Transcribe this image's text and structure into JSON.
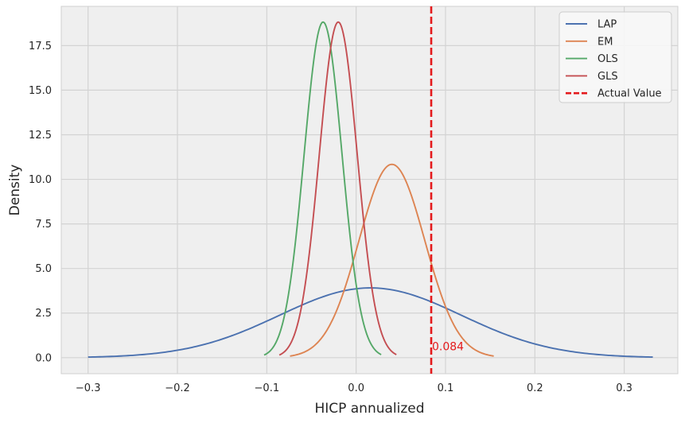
{
  "chart_data": {
    "type": "line",
    "xlabel": "HICP annualized",
    "ylabel": "Density",
    "xlim": [
      -0.33,
      0.36
    ],
    "ylim": [
      -0.9,
      19.7
    ],
    "xticks": [
      -0.3,
      -0.2,
      -0.1,
      0.0,
      0.1,
      0.2,
      0.3
    ],
    "xtick_labels": [
      "−0.3",
      "−0.2",
      "−0.1",
      "0.0",
      "0.1",
      "0.2",
      "0.3"
    ],
    "yticks": [
      0.0,
      2.5,
      5.0,
      7.5,
      10.0,
      12.5,
      15.0,
      17.5
    ],
    "ytick_labels": [
      "0.0",
      "2.5",
      "5.0",
      "7.5",
      "10.0",
      "12.5",
      "15.0",
      "17.5"
    ],
    "grid": true,
    "background": "#efefef",
    "legend_position": "top-right",
    "series": [
      {
        "name": "LAP",
        "color": "#4c72b0",
        "dist": "normal",
        "mean": 0.016,
        "std": 0.102,
        "x_range": [
          -0.3,
          0.332
        ]
      },
      {
        "name": "EM",
        "color": "#dd8452",
        "dist": "normal",
        "mean": 0.04,
        "std": 0.0368,
        "x_range": [
          -0.074,
          0.154
        ]
      },
      {
        "name": "OLS",
        "color": "#55a868",
        "dist": "normal",
        "mean": -0.037,
        "std": 0.0212,
        "x_range": [
          -0.103,
          0.028
        ]
      },
      {
        "name": "GLS",
        "color": "#c44e52",
        "dist": "normal",
        "mean": -0.02,
        "std": 0.0212,
        "x_range": [
          -0.086,
          0.045
        ]
      }
    ],
    "reference_line": {
      "name": "Actual Value",
      "x": 0.084,
      "color": "#e41a1c",
      "style": "dashed"
    },
    "annotations": [
      {
        "text": "0.084",
        "x": 0.084,
        "y": 0.5,
        "color": "#e41a1c"
      }
    ]
  }
}
